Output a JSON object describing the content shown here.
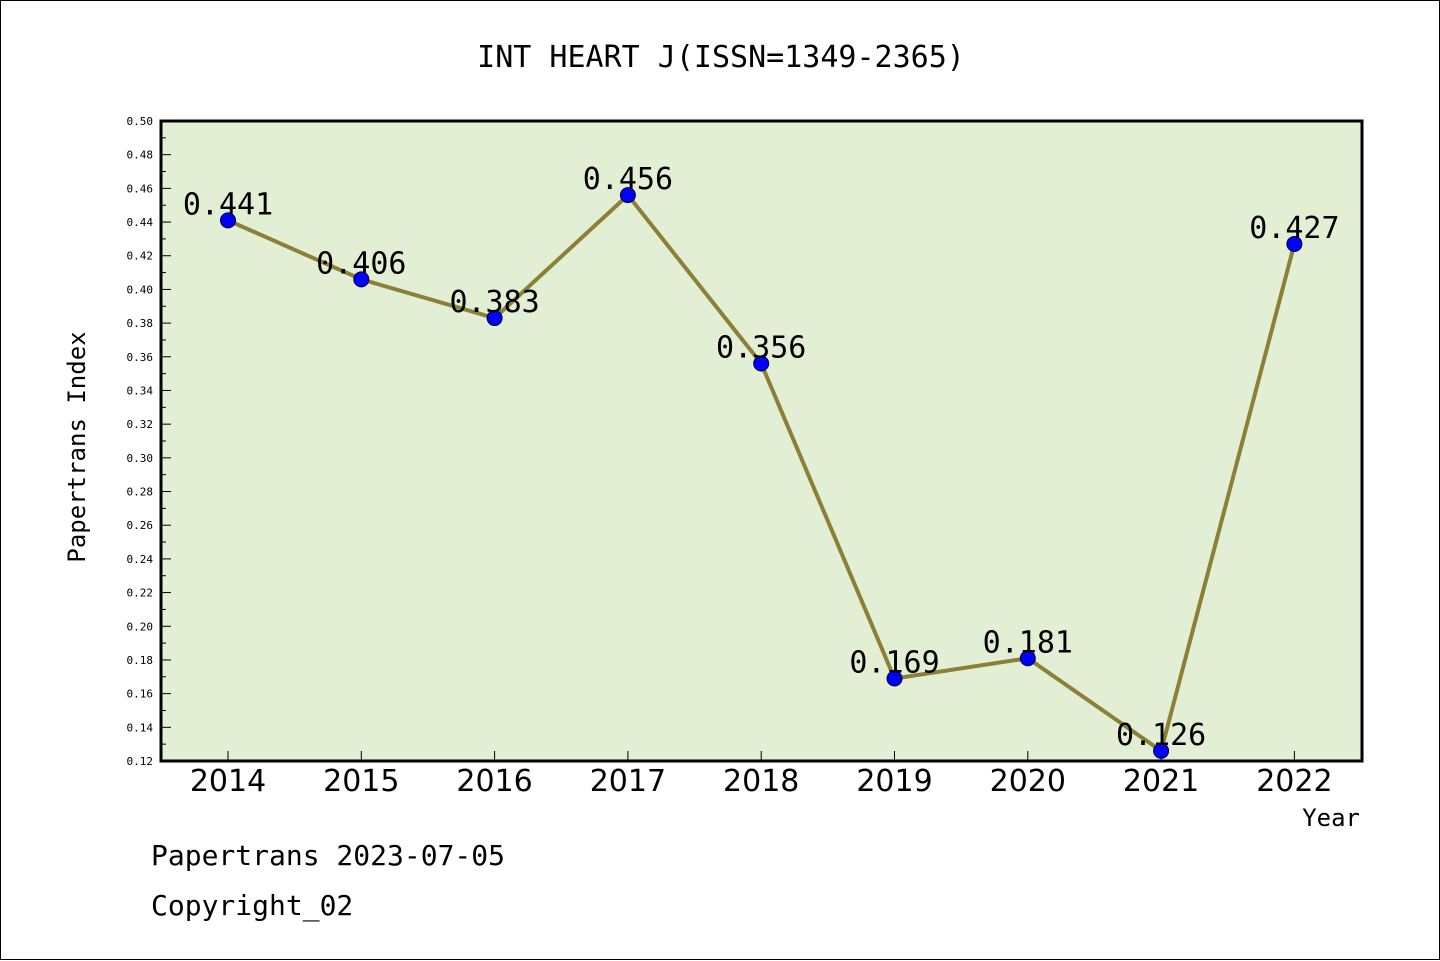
{
  "chart_data": {
    "type": "line",
    "title": "INT HEART J(ISSN=1349-2365)",
    "xlabel": "Year",
    "ylabel": "Papertrans Index",
    "categories": [
      "2014",
      "2015",
      "2016",
      "2017",
      "2018",
      "2019",
      "2020",
      "2021",
      "2022"
    ],
    "series": [
      {
        "values": [
          0.441,
          0.406,
          0.383,
          0.456,
          0.356,
          0.169,
          0.181,
          0.126,
          0.427
        ],
        "labels": [
          "0.441",
          "0.406",
          "0.383",
          "0.456",
          "0.356",
          "0.169",
          "0.181",
          "0.126",
          "0.427"
        ],
        "line_color": "#8b8036",
        "marker_color": "#0000ff"
      }
    ],
    "ylim": [
      0.12,
      0.5
    ],
    "yticks": [
      "0.12",
      "0.14",
      "0.16",
      "0.18",
      "0.20",
      "0.22",
      "0.24",
      "0.26",
      "0.28",
      "0.30",
      "0.32",
      "0.34",
      "0.36",
      "0.38",
      "0.40",
      "0.42",
      "0.44",
      "0.46",
      "0.48",
      "0.50"
    ],
    "plot_background": "#e2efd5",
    "grid": false,
    "legend": "none"
  },
  "footer": {
    "line1": "Papertrans 2023-07-05",
    "line2": "Copyright_02"
  }
}
